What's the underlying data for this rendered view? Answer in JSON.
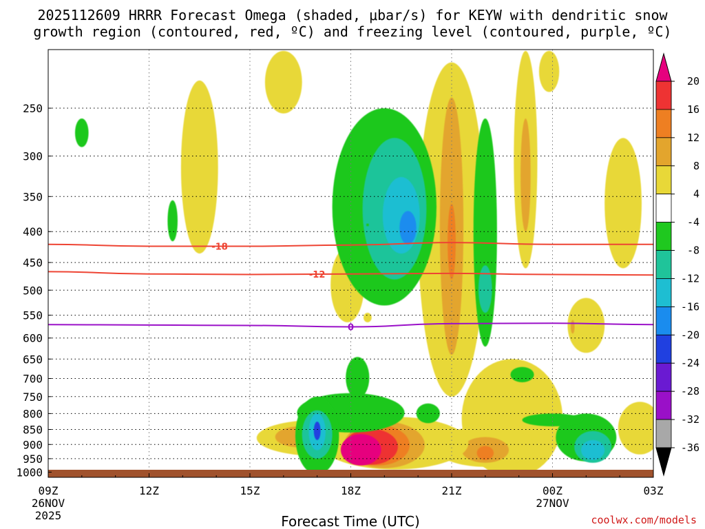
{
  "chart_data": {
    "type": "heatmap",
    "title_line1": "2025112609 HRRR Forecast Omega (shaded, μbar/s) for KEYW with dendritic snow",
    "title_line2": "growth region (contoured, red, ºC) and freezing level (contoured, purple, ºC)",
    "xlabel": "Forecast Time (UTC)",
    "credit": "coolwx.com/models",
    "x_hours": [
      0,
      3,
      6,
      9,
      12,
      15,
      18
    ],
    "x_tick_labels": [
      "09Z",
      "12Z",
      "15Z",
      "18Z",
      "21Z",
      "00Z",
      "03Z"
    ],
    "x_date_labels": [
      {
        "hour": 0,
        "lines": [
          "26NOV",
          "2025"
        ]
      },
      {
        "hour": 15,
        "lines": [
          "27NOV"
        ]
      }
    ],
    "xlim": [
      0,
      18
    ],
    "y_levels": [
      250,
      300,
      350,
      400,
      450,
      500,
      550,
      600,
      650,
      700,
      750,
      800,
      850,
      900,
      950,
      1000
    ],
    "ylim": [
      200,
      1020
    ],
    "y_scale": "log-pressure",
    "colorbar": {
      "tick_values": [
        20,
        16,
        12,
        8,
        4,
        -4,
        -8,
        -12,
        -16,
        -20,
        -24,
        -28,
        -32,
        -36
      ],
      "bins": [
        {
          "from": 20,
          "to": 24,
          "color": "#e6007e"
        },
        {
          "from": 16,
          "to": 20,
          "color": "#ee3333"
        },
        {
          "from": 12,
          "to": 16,
          "color": "#ee7f22"
        },
        {
          "from": 8,
          "to": 12,
          "color": "#e3a52d"
        },
        {
          "from": 4,
          "to": 8,
          "color": "#e8d838"
        },
        {
          "from": -4,
          "to": 4,
          "color": "#ffffff"
        },
        {
          "from": -8,
          "to": -4,
          "color": "#1fc81f"
        },
        {
          "from": -12,
          "to": -8,
          "color": "#1fc49a"
        },
        {
          "from": -16,
          "to": -12,
          "color": "#1ebed2"
        },
        {
          "from": -20,
          "to": -16,
          "color": "#1a8cee"
        },
        {
          "from": -24,
          "to": -20,
          "color": "#2040e0"
        },
        {
          "from": -28,
          "to": -24,
          "color": "#6a1ad2"
        },
        {
          "from": -32,
          "to": -28,
          "color": "#9a10c8"
        },
        {
          "from": -36,
          "to": -32,
          "color": "#a8a8a8"
        }
      ],
      "top_arrow_color": "#e6007e",
      "bottom_arrow_color": "#000000"
    },
    "omega_blobs": [
      {
        "hour": 4.5,
        "p": 330,
        "dh": 0.55,
        "dp": 105,
        "value": 5
      },
      {
        "hour": 7.0,
        "p": 210,
        "dh": 0.55,
        "dp": 45,
        "value": 5
      },
      {
        "hour": 17.1,
        "p": 370,
        "dh": 0.55,
        "dp": 90,
        "value": 5
      },
      {
        "hour": 14.9,
        "p": 210,
        "dh": 0.3,
        "dp": 25,
        "value": 5
      },
      {
        "hour": 14.2,
        "p": 330,
        "dh": 0.35,
        "dp": 130,
        "value": 6
      },
      {
        "hour": 14.2,
        "p": 330,
        "dh": 0.15,
        "dp": 70,
        "value": 9
      },
      {
        "hour": 12.0,
        "p": 480,
        "dh": 1.0,
        "dp": 270,
        "value": 7
      },
      {
        "hour": 12.0,
        "p": 440,
        "dh": 0.35,
        "dp": 200,
        "value": 10
      },
      {
        "hour": 12.0,
        "p": 420,
        "dh": 0.12,
        "dp": 60,
        "value": 14
      },
      {
        "hour": 16.0,
        "p": 575,
        "dh": 0.55,
        "dp": 60,
        "value": 5
      },
      {
        "hour": 15.6,
        "p": 575,
        "dh": 0.06,
        "dp": 15,
        "value": 9
      },
      {
        "hour": 8.9,
        "p": 495,
        "dh": 0.5,
        "dp": 70,
        "value": 5
      },
      {
        "hour": 9.5,
        "p": 555,
        "dh": 0.12,
        "dp": 10,
        "value": 5
      },
      {
        "hour": 8.0,
        "p": 880,
        "dh": 1.8,
        "dp": 60,
        "value": 5
      },
      {
        "hour": 7.5,
        "p": 875,
        "dh": 0.75,
        "dp": 35,
        "value": 9
      },
      {
        "hour": 7.9,
        "p": 875,
        "dh": 0.1,
        "dp": 10,
        "value": 13
      },
      {
        "hour": 13.8,
        "p": 880,
        "dh": 1.5,
        "dp": 230,
        "value": 5
      },
      {
        "hour": 13.0,
        "p": 910,
        "dh": 1.5,
        "dp": 70,
        "value": 5
      },
      {
        "hour": 13.0,
        "p": 920,
        "dh": 0.7,
        "dp": 45,
        "value": 10
      },
      {
        "hour": 13.0,
        "p": 930,
        "dh": 0.25,
        "dp": 25,
        "value": 14
      },
      {
        "hour": 17.6,
        "p": 850,
        "dh": 0.65,
        "dp": 85,
        "value": 5
      },
      {
        "hour": 10.3,
        "p": 900,
        "dh": 2.2,
        "dp": 90,
        "value": 5
      },
      {
        "hour": 10.0,
        "p": 905,
        "dh": 1.2,
        "dp": 80,
        "value": 9
      },
      {
        "hour": 9.8,
        "p": 905,
        "dh": 0.95,
        "dp": 70,
        "value": 13
      },
      {
        "hour": 9.6,
        "p": 910,
        "dh": 0.8,
        "dp": 62,
        "value": 17
      },
      {
        "hour": 9.3,
        "p": 920,
        "dh": 0.6,
        "dp": 55,
        "value": 22
      },
      {
        "hour": 10.0,
        "p": 390,
        "dh": 1.55,
        "dp": 140,
        "value": -6
      },
      {
        "hour": 10.3,
        "p": 380,
        "dh": 0.95,
        "dp": 100,
        "value": -10
      },
      {
        "hour": 10.5,
        "p": 380,
        "dh": 0.55,
        "dp": 55,
        "value": -14
      },
      {
        "hour": 10.7,
        "p": 395,
        "dh": 0.25,
        "dp": 25,
        "value": -17
      },
      {
        "hour": 13.0,
        "p": 440,
        "dh": 0.35,
        "dp": 180,
        "value": -6
      },
      {
        "hour": 13.0,
        "p": 500,
        "dh": 0.2,
        "dp": 45,
        "value": -10
      },
      {
        "hour": 9.0,
        "p": 800,
        "dh": 1.6,
        "dp": 60,
        "value": -6
      },
      {
        "hour": 9.2,
        "p": 700,
        "dh": 0.35,
        "dp": 55,
        "value": -6
      },
      {
        "hour": 8.0,
        "p": 880,
        "dh": 0.65,
        "dp": 130,
        "value": -6
      },
      {
        "hour": 8.0,
        "p": 870,
        "dh": 0.45,
        "dp": 80,
        "value": -10
      },
      {
        "hour": 8.0,
        "p": 860,
        "dh": 0.25,
        "dp": 60,
        "value": -16
      },
      {
        "hour": 8.0,
        "p": 855,
        "dh": 0.1,
        "dp": 30,
        "value": -22
      },
      {
        "hour": 11.3,
        "p": 800,
        "dh": 0.35,
        "dp": 30,
        "value": -6
      },
      {
        "hour": 16.0,
        "p": 880,
        "dh": 0.9,
        "dp": 80,
        "value": -6
      },
      {
        "hour": 16.2,
        "p": 910,
        "dh": 0.55,
        "dp": 55,
        "value": -10
      },
      {
        "hour": 16.2,
        "p": 920,
        "dh": 0.35,
        "dp": 35,
        "value": -14
      },
      {
        "hour": 15.0,
        "p": 820,
        "dh": 0.9,
        "dp": 20,
        "value": -6
      },
      {
        "hour": 9.5,
        "p": 390,
        "dh": 0.01,
        "dp": 1,
        "value": -6
      },
      {
        "hour": 1.0,
        "p": 275,
        "dh": 0.2,
        "dp": 15,
        "value": -6
      },
      {
        "hour": 3.7,
        "p": 385,
        "dh": 0.15,
        "dp": 30,
        "value": -6
      },
      {
        "hour": 14.1,
        "p": 690,
        "dh": 0.35,
        "dp": 20,
        "value": -6
      }
    ],
    "contours": [
      {
        "label": "-18",
        "color": "#ee4433",
        "label_hour": 5.1,
        "hours": [
          0,
          3,
          6,
          9,
          12,
          15,
          18
        ],
        "p": [
          420,
          423,
          423,
          421,
          417,
          420,
          420
        ]
      },
      {
        "label": "-12",
        "color": "#ee4433",
        "label_hour": 8.0,
        "hours": [
          0,
          3,
          6,
          9,
          12,
          15,
          18
        ],
        "p": [
          466,
          470,
          471,
          470,
          469,
          471,
          472
        ]
      },
      {
        "label": "0",
        "color": "#9a10c8",
        "label_hour": 9.0,
        "hours": [
          0,
          3,
          6,
          9,
          12,
          15,
          18
        ],
        "p": [
          570,
          571,
          572,
          575,
          568,
          567,
          570
        ]
      }
    ],
    "terrain_color": "#a0522d"
  }
}
